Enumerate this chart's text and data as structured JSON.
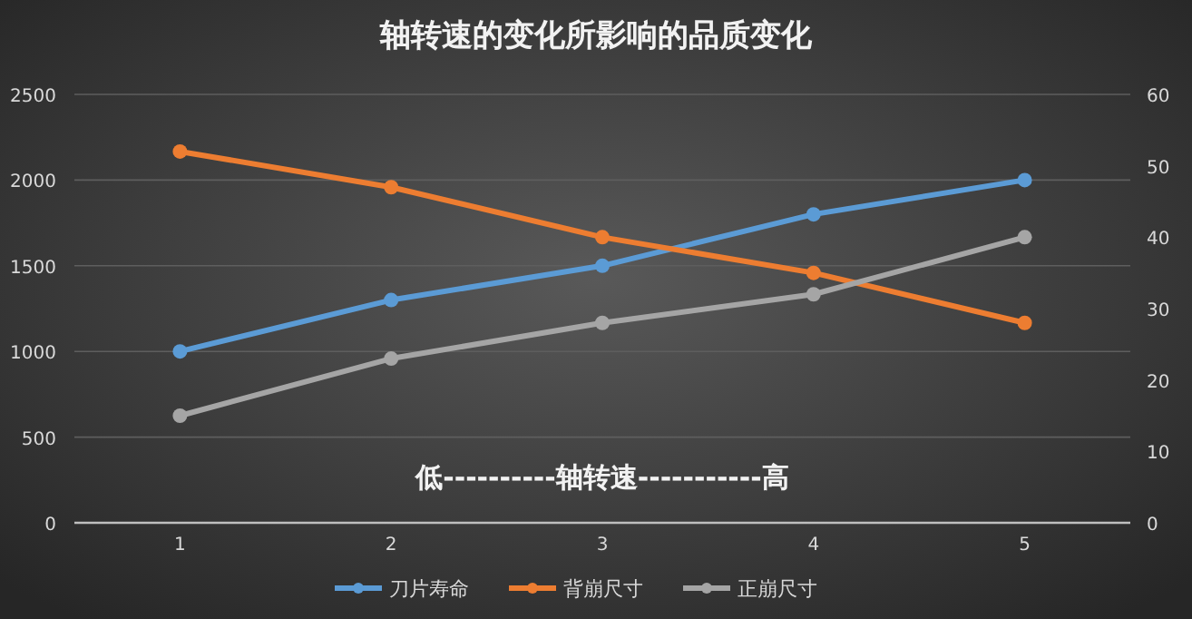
{
  "chart_data": {
    "type": "line",
    "title": "轴转速的变化所影响的品质变化",
    "categories": [
      "1",
      "2",
      "3",
      "4",
      "5"
    ],
    "series": [
      {
        "name": "刀片寿命",
        "color": "#5b9bd5",
        "values": [
          1000,
          1300,
          1500,
          1800,
          2000
        ]
      },
      {
        "name": "背崩尺寸",
        "color": "#ed7d31",
        "values": [
          52,
          47,
          40,
          35,
          28
        ],
        "axis": "y2"
      },
      {
        "name": "正崩尺寸",
        "color": "#a5a5a5",
        "values": [
          15,
          23,
          28,
          32,
          40
        ],
        "axis": "y2"
      }
    ],
    "ylim": [
      0,
      2500
    ],
    "yticks": [
      0,
      500,
      1000,
      1500,
      2000,
      2500
    ],
    "y2lim": [
      0,
      60
    ],
    "y2ticks": [
      0,
      10,
      20,
      30,
      40,
      50,
      60
    ],
    "annotations": [
      "低----------轴转速-----------高"
    ],
    "grid": "y",
    "legend": "bottom",
    "marker": "circle",
    "line_style": "solid"
  }
}
